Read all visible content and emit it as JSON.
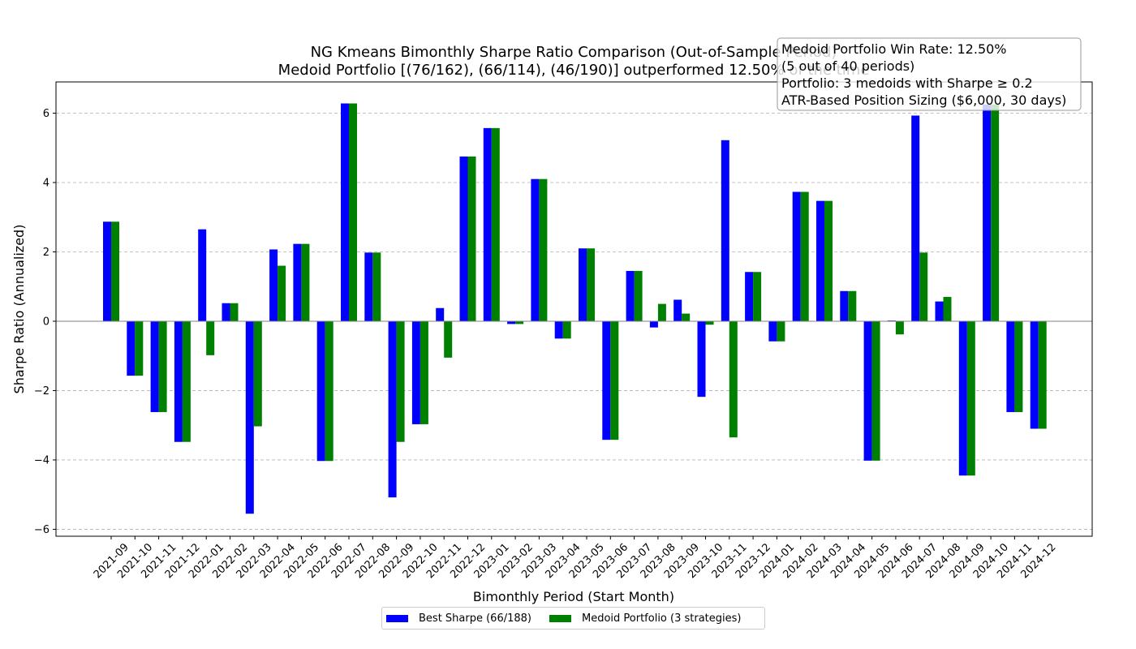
{
  "chart_data": {
    "type": "bar",
    "title": "NG Kmeans Bimonthly Sharpe Ratio Comparison (Out-of-Sample Period)",
    "subtitle": "Medoid Portfolio [(76/162), (66/114), (46/190)] outperformed 12.50% of the time",
    "xlabel": "Bimonthly Period (Start Month)",
    "ylabel": "Sharpe Ratio (Annualized)",
    "ylim": [
      -6.2,
      6.9
    ],
    "yticks": [
      -6,
      -4,
      -2,
      0,
      2,
      4,
      6
    ],
    "grid": "horizontal dashed",
    "legend_placement": "below plot, center",
    "categories": [
      "2021-09",
      "2021-10",
      "2021-11",
      "2021-12",
      "2022-01",
      "2022-02",
      "2022-03",
      "2022-04",
      "2022-05",
      "2022-06",
      "2022-07",
      "2022-08",
      "2022-09",
      "2022-10",
      "2022-11",
      "2022-12",
      "2023-01",
      "2023-02",
      "2023-03",
      "2023-04",
      "2023-05",
      "2023-06",
      "2023-07",
      "2023-08",
      "2023-09",
      "2023-10",
      "2023-11",
      "2023-12",
      "2024-01",
      "2024-02",
      "2024-03",
      "2024-04",
      "2024-05",
      "2024-06",
      "2024-07",
      "2024-08",
      "2024-09",
      "2024-10",
      "2024-11",
      "2024-12"
    ],
    "series": [
      {
        "name": "Best Sharpe (66/188)",
        "color": "#0000ff",
        "values": [
          2.87,
          -1.57,
          -2.62,
          -3.48,
          2.65,
          0.52,
          -5.55,
          2.07,
          2.23,
          -4.03,
          6.28,
          1.98,
          -5.08,
          -2.97,
          0.38,
          4.75,
          5.57,
          -0.08,
          4.1,
          -0.5,
          2.1,
          -3.42,
          1.45,
          -0.18,
          0.62,
          -2.18,
          5.22,
          1.42,
          -0.58,
          3.73,
          3.47,
          0.87,
          -4.02,
          0.02,
          5.93,
          0.57,
          -4.45,
          6.25,
          -2.62,
          -3.1
        ]
      },
      {
        "name": "Medoid Portfolio (3 strategies)",
        "color": "#008000",
        "values": [
          2.87,
          -1.57,
          -2.62,
          -3.48,
          -0.98,
          0.52,
          -3.03,
          1.6,
          2.23,
          -4.03,
          6.28,
          1.98,
          -3.48,
          -2.97,
          -1.05,
          4.75,
          5.57,
          -0.08,
          4.1,
          -0.5,
          2.1,
          -3.42,
          1.45,
          0.5,
          0.22,
          -0.1,
          -3.35,
          1.42,
          -0.58,
          3.73,
          3.47,
          0.87,
          -4.02,
          -0.38,
          1.98,
          0.7,
          -4.45,
          6.25,
          -2.62,
          -3.1
        ]
      }
    ],
    "stats_box": [
      "Medoid Portfolio Win Rate: 12.50%",
      "(5 out of 40 periods)",
      "Portfolio: 3 medoids with Sharpe ≥ 0.2",
      "ATR-Based Position Sizing ($6,000, 30 days)"
    ]
  }
}
